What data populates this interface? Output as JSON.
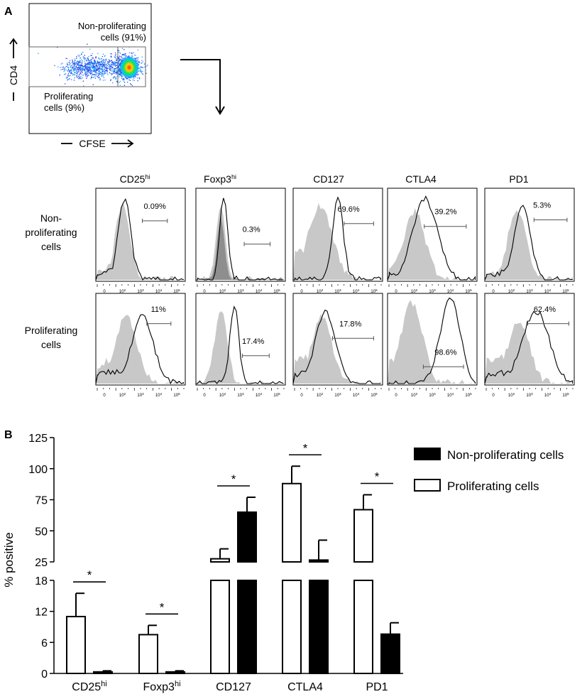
{
  "panel_a": {
    "label": "A",
    "scatter": {
      "y_axis_label": "CD4",
      "x_axis_label": "CFSE",
      "gate_nonprolif": [
        "Non-proliferating",
        "cells (91%)"
      ],
      "gate_prolif": [
        "Proliferating",
        "cells (9%)"
      ]
    },
    "columns": [
      {
        "name": "CD25",
        "sup": "hi"
      },
      {
        "name": "Foxp3",
        "sup": "hi"
      },
      {
        "name": "CD127",
        "sup": ""
      },
      {
        "name": "CTLA4",
        "sup": ""
      },
      {
        "name": "PD1",
        "sup": ""
      }
    ],
    "row_labels": [
      [
        "Non-",
        "proliferating",
        "cells"
      ],
      [
        "Proliferating",
        "cells"
      ]
    ],
    "histograms": [
      [
        {
          "pct": "0.09%"
        },
        {
          "pct": "0.3%"
        },
        {
          "pct": "69.6%"
        },
        {
          "pct": "39.2%"
        },
        {
          "pct": "5.3%"
        }
      ],
      [
        {
          "pct": "11%"
        },
        {
          "pct": "17.4%"
        },
        {
          "pct": "17.8%"
        },
        {
          "pct": "98.6%"
        },
        {
          "pct": "62.4%"
        }
      ]
    ],
    "hist_ticks": [
      "0",
      "10",
      "10",
      "10",
      "10"
    ],
    "hist_tick_sups": [
      "",
      "2",
      "3",
      "4",
      "5"
    ]
  },
  "chart_data": {
    "type": "bar",
    "panel_label": "B",
    "ylabel": "% positive",
    "categories": [
      {
        "name": "CD25",
        "sup": "hi"
      },
      {
        "name": "Foxp3",
        "sup": "hi"
      },
      {
        "name": "CD127",
        "sup": ""
      },
      {
        "name": "CTLA4",
        "sup": ""
      },
      {
        "name": "PD1",
        "sup": ""
      }
    ],
    "series": [
      {
        "name": "Proliferating cells",
        "fill": "#ffffff",
        "values": [
          11,
          7.5,
          27.5,
          88,
          67
        ],
        "errors": [
          4.5,
          1.8,
          8,
          14,
          12
        ]
      },
      {
        "name": "Non-proliferating cells",
        "fill": "#000000",
        "values": [
          0.3,
          0.3,
          65,
          26.5,
          7.6
        ],
        "errors": [
          0.2,
          0.2,
          12,
          16,
          2.2
        ]
      }
    ],
    "significance": [
      "*",
      "*",
      "*",
      "*",
      "*"
    ],
    "y_axis_broken": true,
    "y_lower_range": [
      0,
      18
    ],
    "y_upper_range": [
      25,
      125
    ],
    "y_lower_ticks": [
      "0",
      "6",
      "12",
      "18"
    ],
    "y_upper_ticks": [
      "25",
      "50",
      "75",
      "100",
      "125"
    ],
    "legend": [
      {
        "label": "Non-proliferating cells",
        "fill": "#000000"
      },
      {
        "label": "Proliferating cells",
        "fill": "#ffffff"
      }
    ]
  }
}
